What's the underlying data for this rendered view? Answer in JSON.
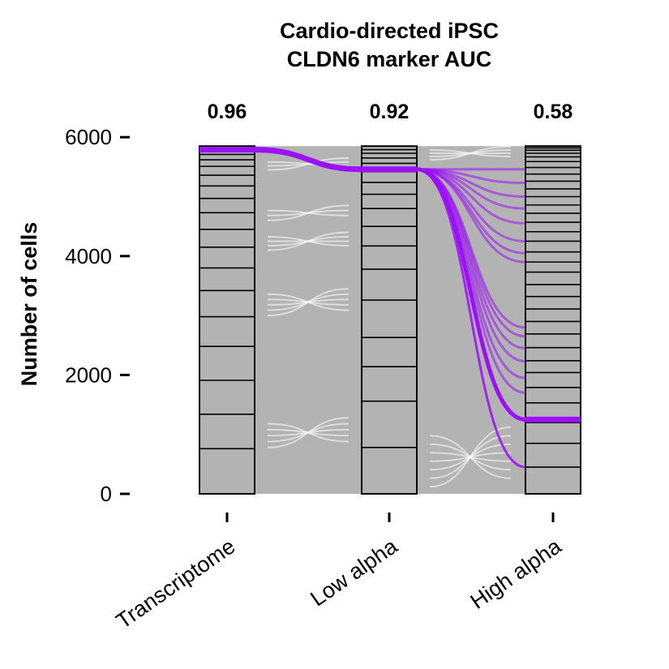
{
  "chart_data": {
    "type": "alluvial",
    "title_lines": [
      "Cardio-directed iPSC",
      "CLDN6 marker AUC"
    ],
    "ylabel": "Number of cells",
    "ylim": [
      0,
      5850
    ],
    "yticks": [
      0,
      2000,
      4000,
      6000
    ],
    "axes": [
      {
        "name": "Transcriptome",
        "auc": "0.96",
        "boundaries": [
          760,
          1340,
          1910,
          2480,
          2980,
          3420,
          3800,
          4150,
          4450,
          4730,
          4970,
          5180,
          5360,
          5510,
          5620,
          5710,
          5780
        ]
      },
      {
        "name": "Low alpha",
        "auc": "0.92",
        "boundaries": [
          780,
          1560,
          2140,
          2630,
          3260,
          3780,
          4170,
          4500,
          4800,
          5040,
          5240,
          5420,
          5560,
          5650,
          5730,
          5790
        ]
      },
      {
        "name": "High alpha",
        "auc": "0.58",
        "boundaries": [
          450,
          850,
          1200,
          1530,
          1790,
          2040,
          2240,
          2460,
          2690,
          2900,
          3110,
          3320,
          3520,
          3730,
          3900,
          4070,
          4250,
          4410,
          4570,
          4720,
          4860,
          5000,
          5130,
          5260,
          5380,
          5490,
          5590,
          5670,
          5730,
          5780,
          5820,
          5850
        ]
      }
    ],
    "highlight": {
      "segment_values": [
        5790,
        5460,
        1250
      ],
      "fan_targets": [
        450,
        1250,
        1700,
        1950,
        2230,
        2450,
        2650,
        2800,
        3900,
        4050,
        4250,
        4550,
        4800,
        5000,
        5230,
        5460
      ],
      "color": "#9B10F5"
    },
    "colors": {
      "stratum_fill": "#b3b3b3",
      "flow": "#b3b3b3",
      "highlight": "#9B10F5"
    }
  }
}
